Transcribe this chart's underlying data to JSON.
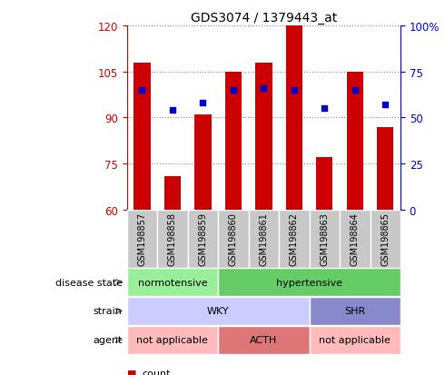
{
  "title": "GDS3074 / 1379443_at",
  "samples": [
    "GSM198857",
    "GSM198858",
    "GSM198859",
    "GSM198860",
    "GSM198861",
    "GSM198862",
    "GSM198863",
    "GSM198864",
    "GSM198865"
  ],
  "bar_values": [
    108,
    71,
    91,
    105,
    108,
    120,
    77,
    105,
    87
  ],
  "percentile_values": [
    65,
    54,
    58,
    65,
    66,
    65,
    55,
    65,
    57
  ],
  "ylim_left": [
    60,
    120
  ],
  "ylim_right": [
    0,
    100
  ],
  "yticks_left": [
    60,
    75,
    90,
    105,
    120
  ],
  "yticks_right": [
    0,
    25,
    50,
    75,
    100
  ],
  "ytick_right_labels": [
    "0",
    "25",
    "50",
    "75",
    "100%"
  ],
  "bar_color": "#cc0000",
  "dot_color": "#0000cc",
  "bar_width": 0.55,
  "disease_state_groups": [
    {
      "label": "normotensive",
      "start": 0,
      "end": 3,
      "color": "#99ee99"
    },
    {
      "label": "hypertensive",
      "start": 3,
      "end": 9,
      "color": "#66cc66"
    }
  ],
  "strain_groups": [
    {
      "label": "WKY",
      "start": 0,
      "end": 6,
      "color": "#ccccff"
    },
    {
      "label": "SHR",
      "start": 6,
      "end": 9,
      "color": "#8888cc"
    }
  ],
  "agent_groups": [
    {
      "label": "not applicable",
      "start": 0,
      "end": 3,
      "color": "#ffbbbb"
    },
    {
      "label": "ACTH",
      "start": 3,
      "end": 6,
      "color": "#dd7777"
    },
    {
      "label": "not applicable",
      "start": 6,
      "end": 9,
      "color": "#ffbbbb"
    }
  ],
  "row_labels": [
    "disease state",
    "strain",
    "agent"
  ],
  "grid_color": "#888888",
  "axis_label_color_left": "#cc0000",
  "axis_label_color_right": "#0000cc",
  "xticklabel_bg": "#c8c8c8",
  "arrow_color": "#888888"
}
